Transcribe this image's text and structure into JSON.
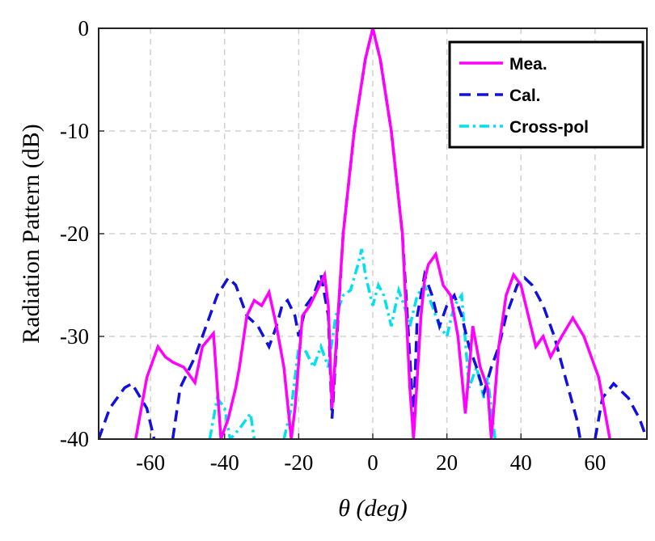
{
  "chart_data": {
    "type": "line",
    "xlabel": "θ (deg)",
    "ylabel": "Radiation Pattern (dB)",
    "xlim": [
      -74,
      74
    ],
    "ylim": [
      -40,
      0
    ],
    "xticks": [
      -60,
      -40,
      -20,
      0,
      20,
      40,
      60
    ],
    "yticks": [
      -40,
      -30,
      -20,
      -10,
      0
    ],
    "grid": true,
    "legend": "upper right",
    "series": [
      {
        "name": "Mea.",
        "color": "#ff00ff",
        "linestyle": "solid",
        "x": [
          -64,
          -61,
          -58,
          -56,
          -54,
          -51,
          -48,
          -46,
          -43,
          -41,
          -39,
          -37,
          -36,
          -34,
          -32,
          -30,
          -28,
          -26,
          -24,
          -22,
          -21,
          -19,
          -17,
          -15,
          -13,
          -12,
          -11,
          -8,
          -5,
          -2,
          0,
          2,
          5,
          8,
          10,
          11,
          13,
          14,
          15,
          17,
          19,
          21,
          23,
          25,
          27,
          29,
          31,
          32,
          34,
          36,
          38,
          40,
          42,
          44,
          46,
          48,
          51,
          54,
          57,
          61,
          64
        ],
        "values": [
          -40,
          -34,
          -31,
          -32,
          -32.5,
          -33,
          -34.5,
          -31,
          -29.7,
          -40,
          -38,
          -35,
          -33,
          -28,
          -26.5,
          -27,
          -25.7,
          -29,
          -33,
          -40,
          -37,
          -28,
          -27,
          -25.5,
          -24,
          -27,
          -37,
          -20,
          -10,
          -3,
          0,
          -3,
          -10,
          -20,
          -35,
          -40,
          -28,
          -24.5,
          -23,
          -22,
          -25,
          -26,
          -30,
          -37.5,
          -29,
          -33,
          -35,
          -40,
          -31,
          -26,
          -24,
          -25,
          -28,
          -31,
          -30,
          -32,
          -30,
          -28.2,
          -30,
          -34,
          -40
        ]
      },
      {
        "name": "Cal.",
        "color": "#1010e0",
        "linestyle": "dashed",
        "x": [
          -74,
          -71,
          -67,
          -65,
          -61,
          -59,
          -56,
          -54,
          -52,
          -48,
          -45,
          -42,
          -39,
          -37,
          -34,
          -31,
          -28,
          -26,
          -24.5,
          -23,
          -21,
          -20,
          -18,
          -16,
          -14,
          -12,
          -11,
          -8,
          -5,
          -2,
          0,
          2,
          5,
          8,
          11,
          12,
          14,
          16,
          18,
          20,
          22,
          24,
          26,
          28,
          30,
          32,
          34,
          36,
          39,
          41,
          43,
          46,
          49,
          52,
          55,
          56,
          58,
          60,
          62,
          65,
          69,
          72,
          74
        ],
        "values": [
          -40,
          -37,
          -35,
          -34.6,
          -37,
          -40,
          null,
          -40,
          -35,
          -32,
          -29,
          -26,
          -24.3,
          -25,
          -28,
          -29,
          -31,
          -29,
          -27,
          -26.5,
          -28,
          -30,
          -27,
          -26,
          -24,
          -28,
          -38,
          -20,
          -10,
          -3,
          0,
          -3,
          -10,
          -20,
          -38,
          -28,
          -24,
          -26,
          -29,
          -27,
          -26,
          -28,
          -31,
          -33,
          -35.5,
          -33,
          -31,
          -28,
          -25,
          -24.3,
          -25,
          -27,
          -30,
          -34,
          -38,
          -40,
          null,
          -40,
          -36,
          -34.6,
          -36,
          -38,
          -40
        ]
      },
      {
        "name": "Cross-pol",
        "color": "#00e0f0",
        "linestyle": "dashdot",
        "x": [
          -44,
          -42,
          -40,
          -38.5,
          -36,
          -34,
          -33,
          -32,
          -28,
          -24,
          -22,
          -20,
          -18,
          -16,
          -14,
          -12,
          -10,
          -8,
          -6,
          -4,
          -3,
          -2,
          0,
          1.5,
          3,
          5,
          7,
          8.5,
          10,
          12,
          14,
          16,
          18,
          20,
          22,
          24,
          26,
          28,
          30,
          31,
          33
        ],
        "values": [
          -40,
          -36,
          -37,
          -40,
          -39,
          -38,
          -37.5,
          -40,
          null,
          -40,
          -37,
          -31,
          -31.5,
          -33,
          -31,
          -33,
          -28,
          -26,
          -25.5,
          -23,
          -21.5,
          -24,
          -27,
          -25,
          -26,
          -29,
          -25.5,
          -27,
          -29,
          -26,
          -25,
          -27,
          -29,
          -30,
          -27,
          -26,
          -35,
          -33,
          -36,
          -34,
          -40
        ]
      }
    ]
  }
}
